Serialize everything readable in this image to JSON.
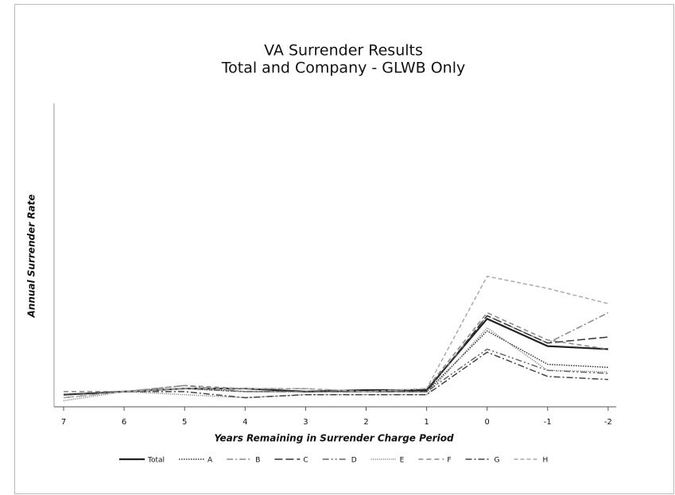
{
  "chart_data": {
    "type": "line",
    "title": [
      "VA Surrender Results",
      "Total and Company - GLWB Only"
    ],
    "x_label": "Years Remaining in Surrender Charge Period",
    "y_label": "Annual Surrender Rate",
    "categories": [
      "7",
      "6",
      "5",
      "4",
      "3",
      "2",
      "1",
      "0",
      "-1",
      "-2"
    ],
    "ylim": [
      0,
      100
    ],
    "series": [
      {
        "name": "Total",
        "color": "#222222",
        "width": 2.2,
        "dash": "none",
        "values": [
          4,
          5,
          6,
          6,
          5,
          5.5,
          5.5,
          29,
          20,
          19
        ]
      },
      {
        "name": "A",
        "color": "#333333",
        "width": 1.5,
        "dash": "1.5,1.5",
        "values": [
          4,
          5,
          6,
          5,
          5,
          5,
          5,
          25,
          14,
          13
        ]
      },
      {
        "name": "B",
        "color": "#888888",
        "width": 1.5,
        "dash": "8,3,2,3",
        "values": [
          3,
          5,
          7,
          5,
          5,
          5,
          5,
          30,
          21,
          31
        ]
      },
      {
        "name": "C",
        "color": "#333333",
        "width": 1.5,
        "dash": "10,4",
        "values": [
          4,
          5,
          6,
          6,
          5,
          5,
          5,
          30,
          21,
          23
        ]
      },
      {
        "name": "D",
        "color": "#666666",
        "width": 1.5,
        "dash": "8,3,2,3,2,3",
        "values": [
          4,
          5,
          6,
          5,
          5,
          5,
          5,
          19,
          12,
          11
        ]
      },
      {
        "name": "E",
        "color": "#777777",
        "width": 1.5,
        "dash": "1,1.5",
        "values": [
          2,
          5,
          4,
          3,
          4,
          4,
          4,
          26,
          12,
          11.5
        ]
      },
      {
        "name": "F",
        "color": "#888888",
        "width": 1.5,
        "dash": "6,4",
        "values": [
          5,
          5,
          7,
          6,
          6,
          5,
          6,
          31,
          22,
          19
        ]
      },
      {
        "name": "G",
        "color": "#444444",
        "width": 1.5,
        "dash": "8,3,2,3",
        "values": [
          4,
          5,
          5,
          3,
          4,
          4,
          4,
          18,
          10,
          9
        ]
      },
      {
        "name": "H",
        "color": "#aaaaaa",
        "width": 1.5,
        "dash": "5,3",
        "values": [
          3,
          5,
          6,
          6,
          6,
          5,
          6,
          43,
          39,
          34
        ]
      }
    ]
  }
}
